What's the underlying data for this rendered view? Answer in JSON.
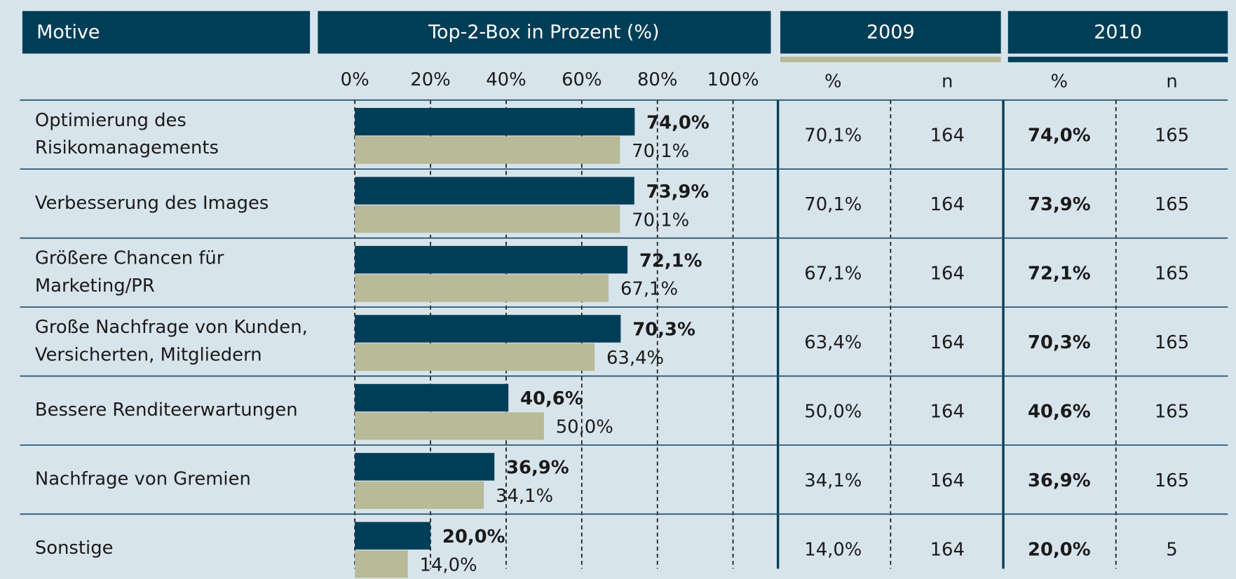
{
  "chart_data": {
    "type": "bar",
    "orientation": "horizontal",
    "header": {
      "motive": "Motive",
      "chart": "Top-2-Box in Prozent (%)"
    },
    "categories": [
      [
        "Optimierung des",
        "Risikomanagements"
      ],
      [
        "Verbesserung des Images"
      ],
      [
        "Größere Chancen für",
        "Marketing/PR"
      ],
      [
        "Große Nachfrage von Kunden,",
        "Versicherten, Mitgliedern"
      ],
      [
        "Bessere Renditeerwartungen"
      ],
      [
        "Nachfrage von Gremien"
      ],
      [
        "Sonstige"
      ]
    ],
    "series": [
      {
        "name": "2010",
        "color": "#003e58",
        "values": [
          74.0,
          73.9,
          72.1,
          70.3,
          40.6,
          36.9,
          20.0
        ],
        "value_labels": [
          "74,0%",
          "73,9%",
          "72,1%",
          "70,3%",
          "40,6%",
          "36,9%",
          "20,0%"
        ],
        "n": [
          165,
          165,
          165,
          165,
          165,
          165,
          5
        ]
      },
      {
        "name": "2009",
        "color": "#b8ba98",
        "values": [
          70.1,
          70.1,
          67.1,
          63.4,
          50.0,
          34.1,
          14.0
        ],
        "value_labels": [
          "70,1%",
          "70,1%",
          "67,1%",
          "63,4%",
          "50,0%",
          "34,1%",
          "14,0%"
        ],
        "n": [
          164,
          164,
          164,
          164,
          164,
          164,
          164
        ]
      }
    ],
    "table_columns": [
      "%",
      "n"
    ],
    "xlim": [
      0,
      100
    ],
    "xticks": [
      {
        "value": 0,
        "label": "0%"
      },
      {
        "value": 20,
        "label": "20%"
      },
      {
        "value": 40,
        "label": "40%"
      },
      {
        "value": 60,
        "label": "60%"
      },
      {
        "value": 80,
        "label": "80%"
      },
      {
        "value": 100,
        "label": "100%"
      }
    ],
    "grid": true
  }
}
